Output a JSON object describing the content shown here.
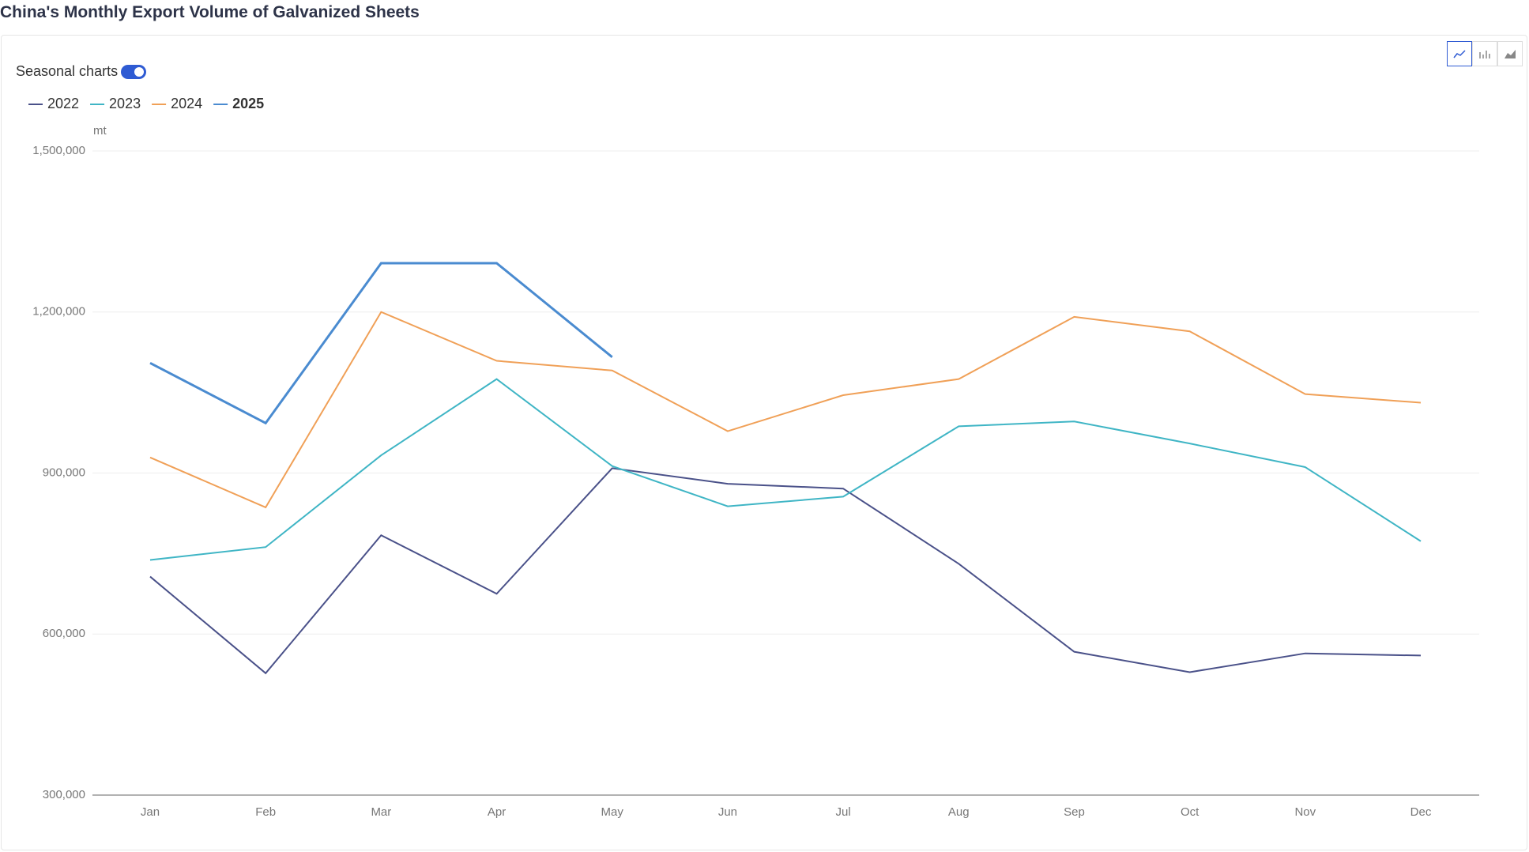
{
  "header": {
    "title": "China's Monthly Export Volume of Galvanized Sheets"
  },
  "controls": {
    "seasonal_label": "Seasonal charts"
  },
  "chart_data": {
    "type": "line",
    "y_unit": "mt",
    "categories": [
      "Jan",
      "Feb",
      "Mar",
      "Apr",
      "May",
      "Jun",
      "Jul",
      "Aug",
      "Sep",
      "Oct",
      "Nov",
      "Dec"
    ],
    "ylim": [
      300000,
      1500000
    ],
    "yticks": [
      {
        "value": 300000,
        "label": "300,000"
      },
      {
        "value": 600000,
        "label": "600,000"
      },
      {
        "value": 900000,
        "label": "900,000"
      },
      {
        "value": 1200000,
        "label": "1,200,000"
      },
      {
        "value": 1500000,
        "label": "1,500,000"
      }
    ],
    "grid": true,
    "series": [
      {
        "name": "2022",
        "color": "#4a5189",
        "values": [
          707000,
          527000,
          784000,
          675000,
          909000,
          880000,
          871000,
          731000,
          567000,
          529000,
          564000,
          560000
        ]
      },
      {
        "name": "2023",
        "color": "#3fb5c5",
        "values": [
          738000,
          762000,
          933000,
          1075000,
          913000,
          838000,
          856000,
          987000,
          996000,
          955000,
          911000,
          773000
        ]
      },
      {
        "name": "2024",
        "color": "#f0a057",
        "values": [
          929000,
          836000,
          1200000,
          1109000,
          1091000,
          978000,
          1045000,
          1075000,
          1191000,
          1164000,
          1047000,
          1031000
        ]
      },
      {
        "name": "2025",
        "color": "#4a8bd0",
        "values": [
          1105000,
          993000,
          1291000,
          1291000,
          1116000,
          null,
          null,
          null,
          null,
          null,
          null,
          null
        ]
      }
    ]
  }
}
